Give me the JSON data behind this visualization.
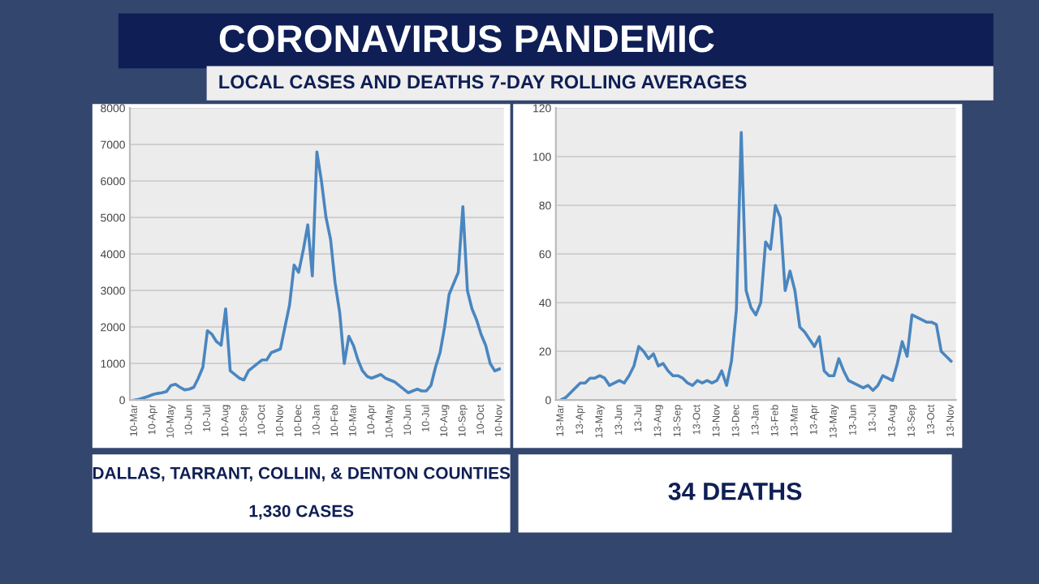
{
  "chart_data": [
    {
      "type": "line",
      "title": "CORONAVIRUS PANDEMIC",
      "subtitle": "LOCAL CASES AND DEATHS 7-DAY ROLLING AVERAGES",
      "annotations": [
        "DALLAS, TARRANT, COLLIN, & DENTON COUNTIES",
        "1,330 CASES"
      ],
      "categories": [
        "10-Mar",
        null,
        null,
        null,
        "10-Apr",
        null,
        null,
        null,
        "10-May",
        null,
        null,
        null,
        "10-Jun",
        null,
        null,
        null,
        "10-Jul",
        null,
        null,
        null,
        "10-Aug",
        null,
        null,
        null,
        "10-Sep",
        null,
        null,
        null,
        "10-Oct",
        null,
        null,
        null,
        "10-Nov",
        null,
        null,
        null,
        "10-Dec",
        null,
        null,
        null,
        "10-Jan",
        null,
        null,
        null,
        "10-Feb",
        null,
        null,
        null,
        "10-Mar",
        null,
        null,
        null,
        "10-Apr",
        null,
        null,
        null,
        "10-May",
        null,
        null,
        null,
        "10-Jun",
        null,
        null,
        null,
        "10-Jul",
        null,
        null,
        null,
        "10-Aug",
        null,
        null,
        null,
        "10-Sep",
        null,
        null,
        null,
        "10-Oct",
        null,
        null,
        null,
        "10-Nov"
      ],
      "series": [
        {
          "color": "#4a86c0",
          "values": [
            0,
            20,
            60,
            100,
            150,
            180,
            200,
            230,
            400,
            430,
            350,
            280,
            300,
            350,
            600,
            900,
            1900,
            1800,
            1600,
            1500,
            2500,
            800,
            700,
            600,
            550,
            800,
            900,
            1000,
            1100,
            1100,
            1300,
            1350,
            1400,
            2000,
            2600,
            3700,
            3500,
            4100,
            4800,
            3400,
            6800,
            6000,
            5000,
            4400,
            3200,
            2400,
            1000,
            1750,
            1500,
            1100,
            800,
            650,
            600,
            650,
            700,
            600,
            550,
            500,
            400,
            300,
            200,
            250,
            300,
            250,
            250,
            400,
            900,
            1300,
            2000,
            2900,
            3200,
            3500,
            5300,
            3000,
            2500,
            2200,
            1800,
            1500,
            1000,
            800,
            850
          ]
        }
      ],
      "ylim": [
        0,
        8000
      ],
      "yticks": [
        0,
        1000,
        2000,
        3000,
        4000,
        5000,
        6000,
        7000,
        8000
      ],
      "grid": "y"
    },
    {
      "type": "line",
      "annotations": [
        "34 DEATHS"
      ],
      "categories": [
        "13-Mar",
        null,
        null,
        null,
        "13-Apr",
        null,
        null,
        null,
        "13-May",
        null,
        null,
        null,
        "13-Jun",
        null,
        null,
        null,
        "13-Jul",
        null,
        null,
        null,
        "13-Aug",
        null,
        null,
        null,
        "13-Sep",
        null,
        null,
        null,
        "13-Oct",
        null,
        null,
        null,
        "13-Nov",
        null,
        null,
        null,
        "13-Dec",
        null,
        null,
        null,
        "13-Jan",
        null,
        null,
        null,
        "13-Feb",
        null,
        null,
        null,
        "13-Mar",
        null,
        null,
        null,
        "13-Apr",
        null,
        null,
        null,
        "13-May",
        null,
        null,
        null,
        "13-Jun",
        null,
        null,
        null,
        "13-Jul",
        null,
        null,
        null,
        "13-Aug",
        null,
        null,
        null,
        "13-Sep",
        null,
        null,
        null,
        "13-Oct",
        null,
        null,
        null,
        "13-Nov"
      ],
      "series": [
        {
          "color": "#4a86c0",
          "values": [
            0,
            1,
            3,
            5,
            7,
            7,
            9,
            9,
            10,
            9,
            6,
            7,
            8,
            7,
            10,
            14,
            22,
            20,
            17,
            19,
            14,
            15,
            12,
            10,
            10,
            9,
            7,
            6,
            8,
            7,
            8,
            7,
            8,
            12,
            6,
            16,
            37,
            110,
            45,
            38,
            35,
            40,
            65,
            62,
            80,
            75,
            45,
            53,
            45,
            30,
            28,
            25,
            22,
            26,
            12,
            10,
            10,
            17,
            12,
            8,
            7,
            6,
            5,
            6,
            4,
            6,
            10,
            9,
            8,
            15,
            24,
            18,
            35,
            34,
            33,
            32,
            32,
            31,
            20,
            18,
            16
          ]
        }
      ],
      "ylim": [
        0,
        120
      ],
      "yticks": [
        0,
        20,
        40,
        60,
        80,
        100,
        120
      ],
      "grid": "y"
    }
  ]
}
